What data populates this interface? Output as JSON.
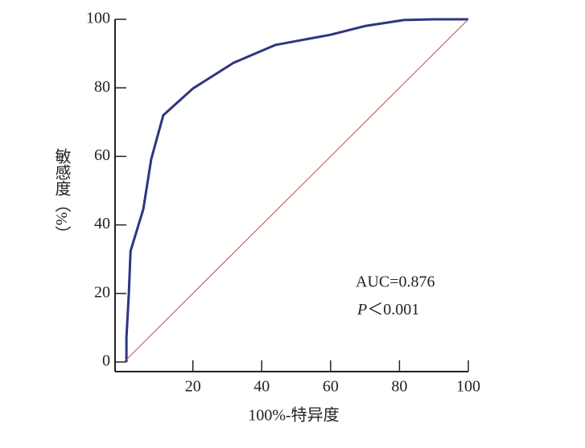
{
  "chart_data": {
    "type": "line",
    "xlabel": "100%-特异度",
    "ylabel": "敏感度（%）",
    "annotations": [
      "AUC=0.876",
      "P",
      "＜0.001"
    ],
    "xlim": [
      -2.6,
      100
    ],
    "ylim": [
      -2.8,
      100
    ],
    "xticks": [
      20,
      40,
      60,
      80,
      100
    ],
    "yticks": [
      0,
      20,
      40,
      60,
      80,
      100
    ],
    "series": [
      {
        "color": "#2e3580",
        "width": 3,
        "x": [
          0.7,
          0.7,
          1.4,
          1.9,
          5.6,
          7.9,
          11.4,
          20,
          31.8,
          43.9,
          60,
          70.3,
          81.3,
          90,
          100
        ],
        "values": [
          0,
          7,
          20,
          32.4,
          44.6,
          59.2,
          72,
          79.8,
          87.3,
          92.5,
          95.5,
          98.1,
          99.8,
          100,
          100
        ]
      },
      {
        "color": "#b5523b",
        "width": 1,
        "x": [
          0,
          100
        ],
        "values": [
          0,
          100
        ]
      }
    ]
  }
}
